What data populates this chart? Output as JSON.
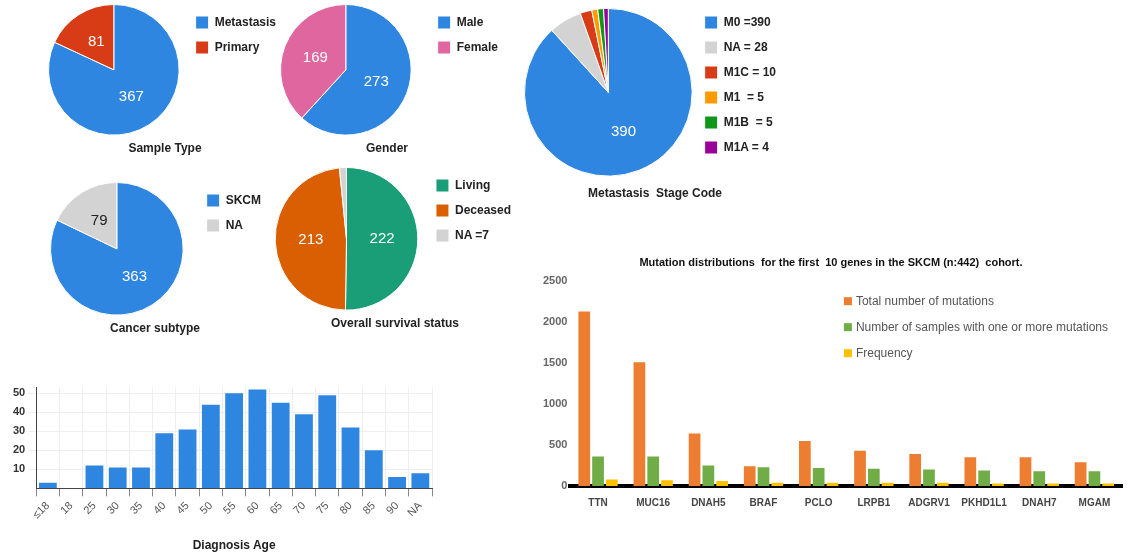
{
  "chart_data": [
    {
      "type": "pie",
      "title": "Sample Type",
      "categories": [
        "Metastasis",
        "Primary"
      ],
      "values": [
        367,
        81
      ],
      "colors": [
        "#2f86e0",
        "#d83c17"
      ],
      "value_labels": [
        "367",
        "81"
      ],
      "legend": "right"
    },
    {
      "type": "pie",
      "title": "Gender",
      "categories": [
        "Male",
        "Female"
      ],
      "values": [
        273,
        169
      ],
      "colors": [
        "#2f86e0",
        "#e066a0"
      ],
      "value_labels": [
        "273",
        "169"
      ],
      "legend": "right"
    },
    {
      "type": "pie",
      "title": "Metastasis  Stage Code",
      "categories": [
        "M0 =390",
        "NA = 28",
        "M1C = 10",
        "M1  = 5",
        "M1B  = 5",
        "M1A = 4"
      ],
      "values": [
        390,
        28,
        10,
        5,
        5,
        4
      ],
      "colors": [
        "#2f86e0",
        "#d3d3d3",
        "#d83c17",
        "#ff9900",
        "#109618",
        "#990099"
      ],
      "value_labels": [
        "390",
        null,
        null,
        null,
        null,
        null
      ],
      "legend": "right"
    },
    {
      "type": "pie",
      "title": "Cancer subtype",
      "categories": [
        "SKCM",
        "NA"
      ],
      "values": [
        363,
        79
      ],
      "colors": [
        "#2f86e0",
        "#d3d3d3"
      ],
      "value_labels": [
        "363",
        "79"
      ],
      "legend": "right"
    },
    {
      "type": "pie",
      "title": "Overall survival status",
      "categories": [
        "Living",
        "Deceased",
        "NA =7"
      ],
      "values": [
        222,
        213,
        7
      ],
      "colors": [
        "#1a9e77",
        "#d95f02",
        "#d3d3d3"
      ],
      "value_labels": [
        "222",
        "213",
        null
      ],
      "legend": "right"
    },
    {
      "type": "bar",
      "xlabel": "Diagnosis Age",
      "categories": [
        "≤18",
        "18",
        "25",
        "30",
        "35",
        "40",
        "45",
        "50",
        "55",
        "60",
        "65",
        "70",
        "75",
        "80",
        "85",
        "90",
        "NA"
      ],
      "values": [
        3,
        null,
        12,
        11,
        11,
        29,
        31,
        44,
        50,
        52,
        45,
        39,
        49,
        32,
        20,
        6,
        8
      ],
      "color": "#2f86e0",
      "ylim": [
        0,
        53
      ],
      "yticks": [
        10,
        20,
        30,
        40,
        50
      ],
      "grid": true
    },
    {
      "type": "bar",
      "title": "Mutation distributions  for the first  10 genes in the SKCM (n:442)  cohort.",
      "categories": [
        "TTN",
        "MUC16",
        "DNAH5",
        "BRAF",
        "PCLO",
        "LRPB1",
        "ADGRV1",
        "PKHD1L1",
        "DNAH7",
        "MGAM"
      ],
      "series": [
        {
          "name": "Total number of mutations",
          "color": "#ed7d31",
          "values": [
            2130,
            1510,
            640,
            240,
            550,
            430,
            390,
            350,
            350,
            290
          ]
        },
        {
          "name": "Number of samples with one or more mutations",
          "color": "#70ad47",
          "values": [
            360,
            360,
            250,
            230,
            220,
            210,
            200,
            190,
            180,
            180
          ]
        },
        {
          "name": "Frequency",
          "color": "#ffc000",
          "values": [
            80,
            70,
            60,
            40,
            40,
            40,
            40,
            30,
            30,
            30
          ]
        }
      ],
      "ylim": [
        0,
        2500
      ],
      "yticks": [
        0,
        500,
        1000,
        1500,
        2000,
        2500
      ],
      "legend": "top right"
    }
  ]
}
